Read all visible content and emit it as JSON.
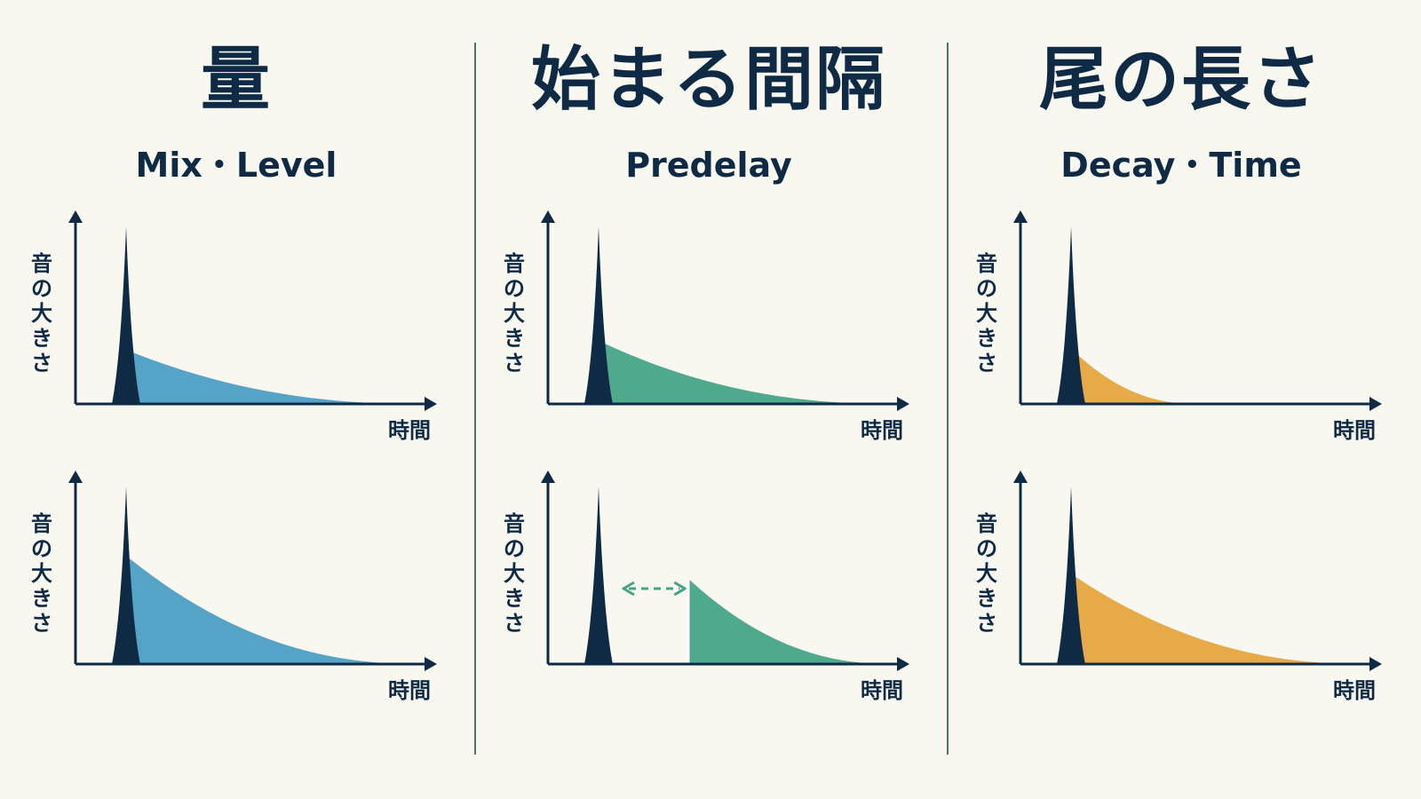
{
  "panels": [
    {
      "title": "量",
      "subtitle": "Mix・Level",
      "color": "#4c9fc4",
      "plots": [
        {
          "y_label": "音の大きさ",
          "x_label": "時間",
          "tail_start": 0.1,
          "tail_level": 0.3,
          "tail_length": 0.95,
          "predelay_arrow": false
        },
        {
          "y_label": "音の大きさ",
          "x_label": "時間",
          "tail_start": 0.1,
          "tail_level": 0.6,
          "tail_length": 0.95,
          "predelay_arrow": false
        }
      ]
    },
    {
      "title": "始まる間隔",
      "subtitle": "Predelay",
      "color": "#45a487",
      "plots": [
        {
          "y_label": "音の大きさ",
          "x_label": "時間",
          "tail_start": 0.1,
          "tail_level": 0.35,
          "tail_length": 0.95,
          "predelay_arrow": false
        },
        {
          "y_label": "音の大きさ",
          "x_label": "時間",
          "tail_start": 0.35,
          "tail_level": 0.48,
          "tail_length": 0.95,
          "predelay_arrow": true
        }
      ]
    },
    {
      "title": "尾の長さ",
      "subtitle": "Decay・Time",
      "color": "#e5a53f",
      "plots": [
        {
          "y_label": "音の大きさ",
          "x_label": "時間",
          "tail_start": 0.1,
          "tail_level": 0.3,
          "tail_length": 0.45,
          "predelay_arrow": false
        },
        {
          "y_label": "音の大きさ",
          "x_label": "時間",
          "tail_start": 0.1,
          "tail_level": 0.5,
          "tail_length": 0.97,
          "predelay_arrow": false
        }
      ]
    }
  ],
  "colors": {
    "background": "#f9f8f0",
    "ink": "#0f2a44",
    "divider": "#4d7570"
  }
}
